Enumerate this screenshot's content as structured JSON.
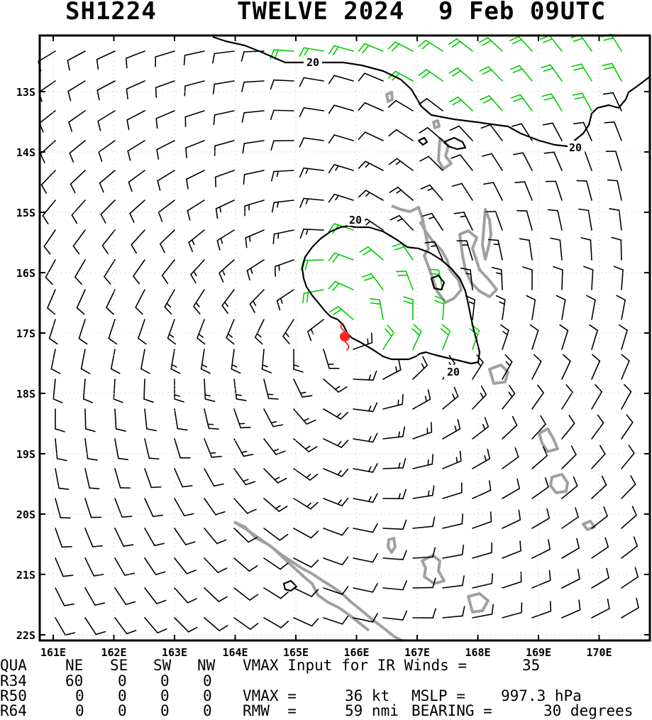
{
  "header": {
    "storm_id": "SH1224",
    "storm_name": "TWELVE 2024",
    "datetime": "9 Feb 09UTC"
  },
  "map": {
    "lon_labels": [
      "161E",
      "162E",
      "163E",
      "164E",
      "165E",
      "166E",
      "167E",
      "168E",
      "169E",
      "170E"
    ],
    "lat_labels": [
      "13S",
      "14S",
      "15S",
      "16S",
      "17S",
      "18S",
      "19S",
      "20S",
      "21S",
      "22S"
    ],
    "contour_label": "20",
    "storm_center": {
      "lon": 165.8,
      "lat": -17.1
    },
    "colors": {
      "barb_low": "#000000",
      "barb_high": "#00cc00",
      "contour": "#000000",
      "land": "#a0a0a0",
      "storm_symbol": "#ff2020"
    }
  },
  "table": {
    "head": [
      "QUA",
      "NE",
      "SE",
      "SW",
      "NW"
    ],
    "rows": [
      {
        "label": "R34",
        "v": [
          "60",
          "0",
          "0",
          "0"
        ]
      },
      {
        "label": "R50",
        "v": [
          "0",
          "0",
          "0",
          "0"
        ]
      },
      {
        "label": "R64",
        "v": [
          "0",
          "0",
          "0",
          "0"
        ]
      }
    ]
  },
  "info": {
    "vmax_ir_label": "VMAX Input for IR Winds =",
    "vmax_ir_value": "35",
    "vmax_label": "VMAX =",
    "vmax_value": "36 kt",
    "mslp_label": "MSLP =",
    "mslp_value": "997.3 hPa",
    "rmw_label": "RMW  =",
    "rmw_value": "59 nmi",
    "bearing_label": "BEARING =",
    "bearing_value": "30 degrees"
  }
}
